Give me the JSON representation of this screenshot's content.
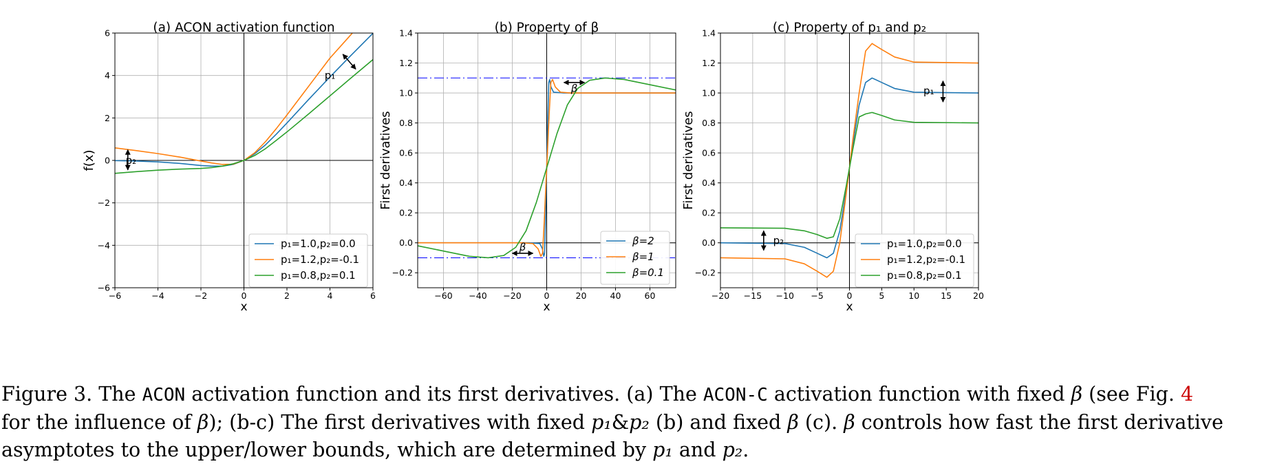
{
  "chart_data": [
    {
      "type": "line",
      "title": "(a) ACON activation function",
      "xlabel": "x",
      "ylabel": "f(x)",
      "xlim": [
        -6,
        6
      ],
      "ylim": [
        -6,
        6
      ],
      "xticks": [
        -6,
        -4,
        -2,
        0,
        2,
        4,
        6
      ],
      "yticks": [
        -6,
        -4,
        -2,
        0,
        2,
        4,
        6
      ],
      "grid": true,
      "legend_position": "lower-right",
      "annotations": [
        "p₁",
        "p₂"
      ],
      "series": [
        {
          "name": "p₁=1.0,p₂=0.0",
          "color": "#1f77b4",
          "x": [
            -6,
            -5,
            -4,
            -3,
            -2,
            -1.5,
            -1,
            -0.5,
            0,
            0.5,
            1,
            1.5,
            2,
            3,
            4,
            5,
            6
          ],
          "y": [
            -0.01,
            -0.03,
            -0.07,
            -0.14,
            -0.24,
            -0.27,
            -0.27,
            -0.19,
            0.0,
            0.31,
            0.73,
            1.23,
            1.76,
            2.86,
            3.93,
            4.97,
            5.99
          ]
        },
        {
          "name": "p₁=1.2,p₂=-0.1",
          "color": "#ff7f0e",
          "x": [
            -6,
            -5,
            -4,
            -3,
            -2,
            -1.5,
            -1,
            -0.5,
            0,
            0.5,
            1,
            1.5,
            2,
            3,
            4,
            5,
            6
          ],
          "y": [
            0.59,
            0.46,
            0.32,
            0.16,
            -0.03,
            -0.12,
            -0.19,
            -0.18,
            0.0,
            0.36,
            0.88,
            1.49,
            2.14,
            3.48,
            4.82,
            5.95,
            7.2
          ]
        },
        {
          "name": "p₁=0.8,p₂=0.1",
          "color": "#2ca02c",
          "x": [
            -6,
            -5,
            -4,
            -3,
            -2,
            -1.5,
            -1,
            -0.5,
            0,
            0.5,
            1,
            1.5,
            2,
            3,
            4,
            5,
            6
          ],
          "y": [
            -0.61,
            -0.53,
            -0.46,
            -0.41,
            -0.38,
            -0.34,
            -0.27,
            -0.16,
            0.0,
            0.23,
            0.55,
            0.94,
            1.34,
            2.18,
            3.04,
            3.9,
            4.75
          ]
        }
      ]
    },
    {
      "type": "line",
      "title": "(b) Property of β",
      "xlabel": "x",
      "ylabel": "First derivatives",
      "xlim": [
        -75,
        75
      ],
      "ylim": [
        -0.3,
        1.4
      ],
      "xticks": [
        -60,
        -40,
        -20,
        0,
        20,
        40,
        60
      ],
      "yticks": [
        -0.2,
        0.0,
        0.2,
        0.4,
        0.6,
        0.8,
        1.0,
        1.2,
        1.4
      ],
      "grid": true,
      "legend_position": "lower-right",
      "bounds": [
        1.1,
        -0.1
      ],
      "annotations": [
        "β",
        "β"
      ],
      "series": [
        {
          "name": "β=2",
          "color": "#1f77b4",
          "x": [
            -75,
            -10,
            -4,
            -2.5,
            -1.7,
            -1.2,
            -0.7,
            0,
            0.7,
            1.2,
            1.7,
            2.5,
            4,
            10,
            75
          ],
          "y": [
            0.0,
            0.0,
            -0.005,
            -0.04,
            -0.09,
            -0.07,
            0.15,
            0.5,
            0.85,
            1.07,
            1.09,
            1.04,
            1.005,
            1.0,
            1.0
          ]
        },
        {
          "name": "β=1",
          "color": "#ff7f0e",
          "x": [
            -75,
            -14,
            -8,
            -5,
            -3.4,
            -2.4,
            -1.4,
            0,
            1.4,
            2.4,
            3.4,
            5,
            8,
            14,
            75
          ],
          "y": [
            0.0,
            0.0,
            -0.005,
            -0.04,
            -0.09,
            -0.07,
            0.15,
            0.5,
            0.85,
            1.07,
            1.09,
            1.04,
            1.005,
            1.0,
            1.0
          ]
        },
        {
          "name": "β=0.1",
          "color": "#2ca02c",
          "x": [
            -75,
            -60,
            -45,
            -34,
            -25,
            -18,
            -12,
            -6,
            0,
            6,
            12,
            18,
            25,
            34,
            45,
            60,
            75
          ],
          "y": [
            -0.02,
            -0.055,
            -0.09,
            -0.1,
            -0.085,
            -0.03,
            0.08,
            0.27,
            0.5,
            0.73,
            0.92,
            1.03,
            1.085,
            1.1,
            1.09,
            1.055,
            1.02
          ]
        }
      ]
    },
    {
      "type": "line",
      "title": "(c) Property of p₁ and p₂",
      "xlabel": "x",
      "ylabel": "First derivatives",
      "xlim": [
        -20,
        20
      ],
      "ylim": [
        -0.3,
        1.4
      ],
      "xticks": [
        -20,
        -15,
        -10,
        -5,
        0,
        5,
        10,
        15,
        20
      ],
      "yticks": [
        -0.2,
        0.0,
        0.2,
        0.4,
        0.6,
        0.8,
        1.0,
        1.2,
        1.4
      ],
      "grid": true,
      "legend_position": "lower-right",
      "annotations": [
        "p₁",
        "p₂"
      ],
      "series": [
        {
          "name": "p₁=1.0,p₂=0.0",
          "color": "#1f77b4",
          "x": [
            -20,
            -10,
            -7,
            -5,
            -3.5,
            -2.5,
            -1.5,
            -0.5,
            0,
            0.5,
            1.5,
            2.5,
            3.5,
            5,
            7,
            10,
            20
          ],
          "y": [
            0.0,
            -0.005,
            -0.03,
            -0.07,
            -0.1,
            -0.07,
            0.08,
            0.35,
            0.5,
            0.65,
            0.92,
            1.07,
            1.1,
            1.07,
            1.03,
            1.005,
            1.0
          ]
        },
        {
          "name": "p₁=1.2,p₂=-0.1",
          "color": "#ff7f0e",
          "x": [
            -20,
            -10,
            -7,
            -5,
            -3.5,
            -2.5,
            -1.5,
            -0.5,
            0,
            0.5,
            1.5,
            2.5,
            3.5,
            5,
            7,
            10,
            20
          ],
          "y": [
            -0.1,
            -0.107,
            -0.14,
            -0.19,
            -0.23,
            -0.19,
            0.0,
            0.33,
            0.5,
            0.68,
            1.0,
            1.28,
            1.33,
            1.29,
            1.24,
            1.206,
            1.2
          ]
        },
        {
          "name": "p₁=0.8,p₂=0.1",
          "color": "#2ca02c",
          "x": [
            -20,
            -10,
            -7,
            -5,
            -3.5,
            -2.5,
            -1.5,
            -0.5,
            0,
            0.5,
            1.5,
            2.5,
            3.5,
            5,
            7,
            10,
            20
          ],
          "y": [
            0.1,
            0.097,
            0.08,
            0.055,
            0.03,
            0.04,
            0.16,
            0.38,
            0.5,
            0.62,
            0.84,
            0.86,
            0.87,
            0.85,
            0.82,
            0.804,
            0.8
          ]
        }
      ]
    }
  ],
  "caption": {
    "p1": "Figure 3. The ",
    "m1": "ACON",
    "p2": " activation function and its first derivatives. (a) The ",
    "m2": "ACON-C",
    "p3": " activation function with fixed ",
    "beta": "β",
    "p4": " (see Fig. ",
    "ref": "4",
    "p5": "for the influence of ",
    "p6": "); (b-c) The first derivatives with fixed ",
    "p1sym": "p₁",
    "amp": "&",
    "p2sym": "p₂",
    "p7": " (b) and fixed ",
    "p8": " (c). ",
    "p9": " controls how fast the first derivative",
    "p10": "asymptotes to the upper/lower bounds, which are determined by ",
    "p11": " and ",
    "p12": "."
  }
}
